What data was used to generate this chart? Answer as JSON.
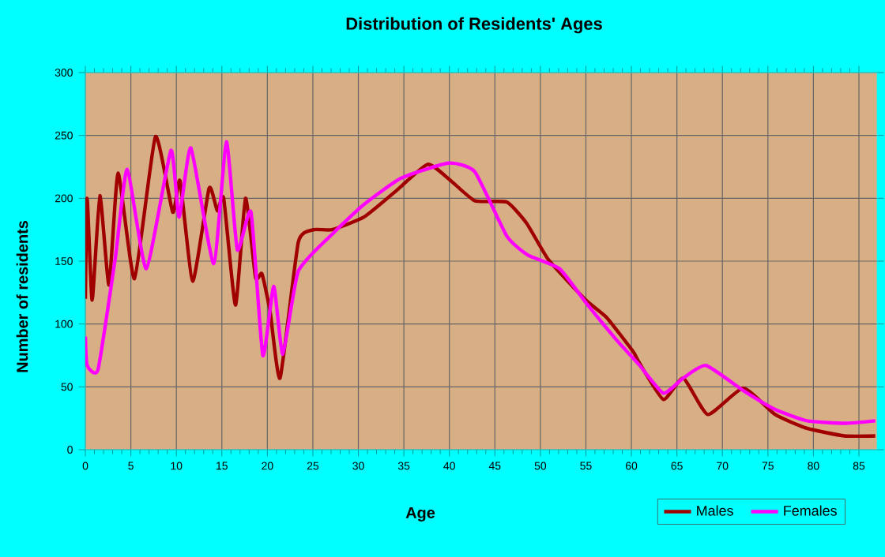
{
  "chart_data": {
    "type": "line",
    "title": "Distribution of Residents' Ages",
    "xlabel": "Age",
    "ylabel": "Number of residents",
    "xlim": [
      0,
      87
    ],
    "xticks": [
      0,
      5,
      10,
      15,
      20,
      25,
      30,
      35,
      40,
      45,
      50,
      55,
      60,
      65,
      70,
      75,
      80,
      85
    ],
    "ylim": [
      0,
      300
    ],
    "yticks": [
      0,
      50,
      100,
      150,
      200,
      250,
      300
    ],
    "grid": true,
    "legend": "bottom right",
    "marker": "none",
    "line_style": "solid",
    "series": [
      {
        "name": "Males",
        "color": "#a00000",
        "x": [
          0,
          0.2,
          0.75,
          1.6,
          2.6,
          3.6,
          5.4,
          7.7,
          9.6,
          10.4,
          11.8,
          13.6,
          14.5,
          15.2,
          16.5,
          17.6,
          18.7,
          19.4,
          20.3,
          21.4,
          23.4,
          25.1,
          27.1,
          30.6,
          34,
          37.6,
          40,
          42.8,
          46.3,
          48.5,
          50.9,
          55,
          57.3,
          60.2,
          60.8,
          63.5,
          65.7,
          68.4,
          72.3,
          75.8,
          79.3,
          83.4,
          86.8
        ],
        "values": [
          120,
          200,
          119,
          202,
          131,
          220,
          136,
          249,
          189,
          214,
          134,
          208,
          190,
          200,
          115,
          200,
          137,
          140,
          110,
          57,
          165,
          175,
          175,
          185,
          205,
          227,
          215,
          198,
          197,
          180,
          151,
          119,
          105,
          78,
          70,
          40,
          57,
          28,
          49,
          28,
          17,
          11,
          11
        ]
      },
      {
        "name": "Females",
        "color": "#ff00ff",
        "x": [
          0,
          0.2,
          1.4,
          3.3,
          4.6,
          6.7,
          9.4,
          10.3,
          11.6,
          14.1,
          15.5,
          16.7,
          18.2,
          19.5,
          20.7,
          21.7,
          23.4,
          27.2,
          30.6,
          34.7,
          39.9,
          42.8,
          46.3,
          48.6,
          52.1,
          55,
          58.4,
          60.8,
          63.5,
          65.7,
          68.2,
          72.3,
          75.8,
          79.3,
          83.4,
          86.8
        ],
        "values": [
          90,
          67,
          64,
          153,
          223,
          144,
          238,
          185,
          240,
          148,
          245,
          159,
          189,
          75,
          130,
          76,
          142,
          172,
          195,
          216,
          228,
          221,
          170,
          155,
          144,
          117,
          87,
          68,
          45,
          57,
          67,
          47,
          32,
          23,
          21,
          23
        ]
      }
    ]
  }
}
